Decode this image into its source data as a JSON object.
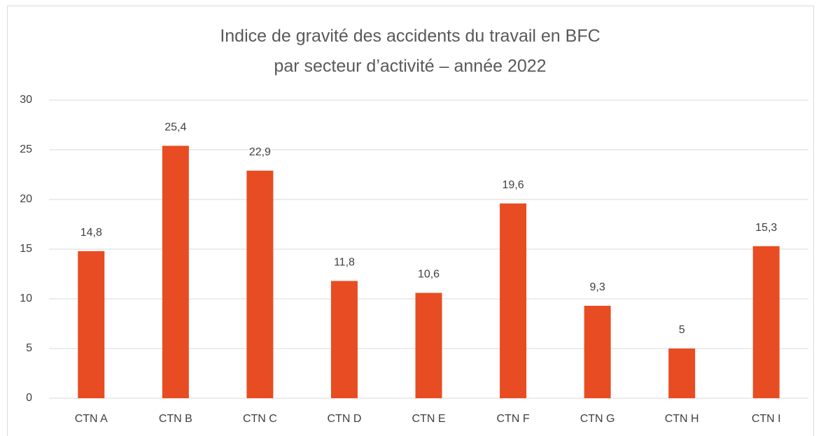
{
  "chart_data": {
    "type": "bar",
    "title": [
      "Indice de gravité des accidents du travail en BFC",
      "par secteur d’activité – année 2022"
    ],
    "categories": [
      "CTN A",
      "CTN B",
      "CTN C",
      "CTN D",
      "CTN E",
      "CTN F",
      "CTN G",
      "CTN H",
      "CTN I"
    ],
    "values": [
      14.8,
      25.4,
      22.9,
      11.8,
      10.6,
      19.6,
      9.3,
      5,
      15.3
    ],
    "value_labels": [
      "14,8",
      "25,4",
      "22,9",
      "11,8",
      "10,6",
      "19,6",
      "9,3",
      "5",
      "15,3"
    ],
    "color": "#e84c22",
    "ylim": [
      0,
      30
    ],
    "yticks": [
      0,
      5,
      10,
      15,
      20,
      25,
      30
    ],
    "grid": true
  }
}
